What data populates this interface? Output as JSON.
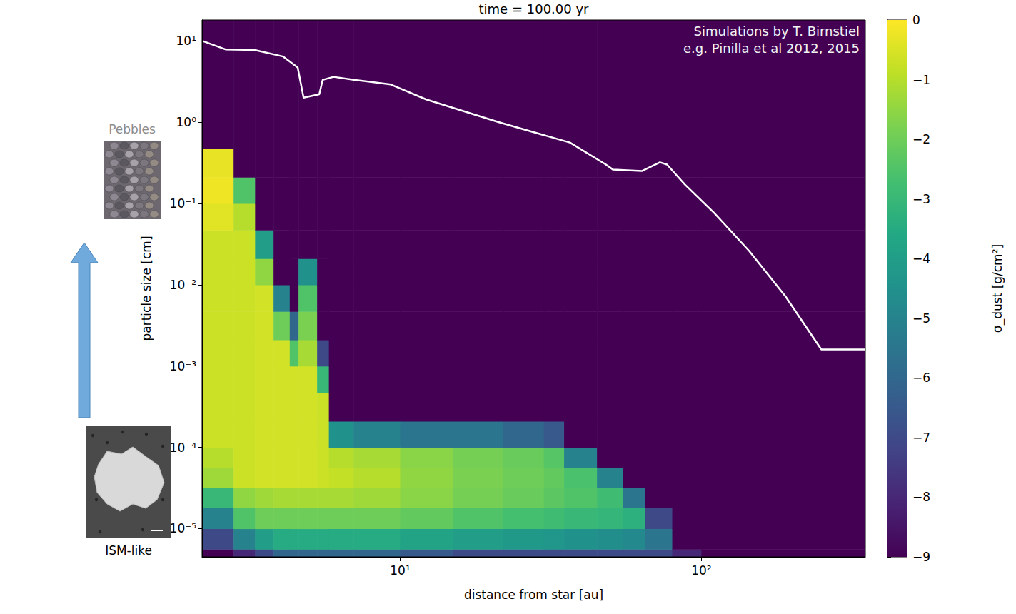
{
  "chart_data": {
    "type": "heatmap",
    "title": "time = 100.00 yr",
    "annotations": [
      "Simulations by T. Birnstiel",
      "e.g. Pinilla et al 2012, 2015"
    ],
    "x_label": "distance from star [au]",
    "y_label": "particle size [cm]",
    "log": true,
    "grid": false,
    "xlim": [
      2.2,
      350
    ],
    "xticks": [
      {
        "value": 10,
        "label": "10¹"
      },
      {
        "value": 100,
        "label": "10²"
      }
    ],
    "ylim": [
      4.5e-06,
      18
    ],
    "yticks": [
      {
        "value": 1e-05,
        "label": "10⁻⁵"
      },
      {
        "value": 0.0001,
        "label": "10⁻⁴"
      },
      {
        "value": 0.001,
        "label": "10⁻³"
      },
      {
        "value": 0.01,
        "label": "10⁻²"
      },
      {
        "value": 0.1,
        "label": "10⁻¹"
      },
      {
        "value": 1,
        "label": "10⁰"
      },
      {
        "value": 10,
        "label": "10¹"
      }
    ],
    "x_edges": [
      2.2,
      2.8,
      3.3,
      3.8,
      4.3,
      4.6,
      5.3,
      5.8,
      7,
      10,
      15,
      22,
      30,
      35,
      45,
      55,
      65,
      80,
      100,
      350
    ],
    "y_edges": [
      4.5e-06,
      5.6e-06,
      1e-05,
      1.8e-05,
      3.2e-05,
      5.6e-05,
      0.0001,
      0.00021,
      0.00047,
      0.001,
      0.0021,
      0.0047,
      0.01,
      0.021,
      0.047,
      0.1,
      0.21,
      0.47,
      18
    ],
    "cells": [
      [
        -9,
        -7,
        -5,
        -3,
        -1.3,
        -1,
        -0.7,
        -0.7,
        -0.7,
        -0.7,
        -0.7,
        -0.7,
        -0.7,
        -0.7,
        -0.4,
        -0.2,
        -0.3,
        -9
      ],
      [
        -8,
        -5,
        -2.5,
        -1.5,
        -0.7,
        -0.7,
        -0.7,
        -0.7,
        -0.7,
        -0.7,
        -0.7,
        -0.7,
        -0.7,
        -0.7,
        -1,
        -2.5,
        -9,
        -9
      ],
      [
        -7,
        -4,
        -2,
        -1.3,
        -0.6,
        -0.6,
        -0.6,
        -0.6,
        -0.6,
        -0.6,
        -0.6,
        -0.6,
        -1.5,
        -4,
        -9,
        -9,
        -9,
        -9
      ],
      [
        -6,
        -3.5,
        -2,
        -1.2,
        -0.6,
        -0.6,
        -0.6,
        -0.6,
        -0.6,
        -0.6,
        -2,
        -5,
        -9,
        -9,
        -9,
        -9,
        -9,
        -9
      ],
      [
        -6,
        -3.5,
        -2,
        -1.2,
        -0.6,
        -0.6,
        -0.6,
        -0.6,
        -0.6,
        -2.5,
        -6,
        -9,
        -9,
        -9,
        -9,
        -9,
        -9,
        -9
      ],
      [
        -6,
        -3.5,
        -2,
        -1.2,
        -0.6,
        -0.6,
        -0.6,
        -0.6,
        -0.6,
        -1.2,
        -1.8,
        -2.5,
        -4.5,
        -9,
        -9,
        -9,
        -9,
        -9
      ],
      [
        -6,
        -3.5,
        -2,
        -1.2,
        -0.7,
        -0.7,
        -0.7,
        -0.7,
        -3,
        -7,
        -9,
        -9,
        -9,
        -9,
        -9,
        -9,
        -9,
        -9
      ],
      [
        -6,
        -3.5,
        -2,
        -1.2,
        -0.8,
        -1,
        -4.5,
        -9,
        -9,
        -9,
        -9,
        -9,
        -9,
        -9,
        -9,
        -9,
        -9,
        -9
      ],
      [
        -6,
        -3.5,
        -2,
        -1.3,
        -1,
        -1.2,
        -5,
        -9,
        -9,
        -9,
        -9,
        -9,
        -9,
        -9,
        -9,
        -9,
        -9,
        -9
      ],
      [
        -6.5,
        -3.8,
        -2.2,
        -1.6,
        -1.5,
        -1.6,
        -5.5,
        -9,
        -9,
        -9,
        -9,
        -9,
        -9,
        -9,
        -9,
        -9,
        -9,
        -9
      ],
      [
        -7,
        -4,
        -2.5,
        -1.9,
        -1.8,
        -1.9,
        -5.5,
        -9,
        -9,
        -9,
        -9,
        -9,
        -9,
        -9,
        -9,
        -9,
        -9,
        -9
      ],
      [
        -7,
        -4.2,
        -2.7,
        -2.1,
        -2,
        -2.1,
        -6,
        -9,
        -9,
        -9,
        -9,
        -9,
        -9,
        -9,
        -9,
        -9,
        -9,
        -9
      ],
      [
        -7,
        -4.3,
        -2.8,
        -2.3,
        -2.2,
        -2.4,
        -6.5,
        -9,
        -9,
        -9,
        -9,
        -9,
        -9,
        -9,
        -9,
        -9,
        -9,
        -9
      ],
      [
        -7,
        -4.5,
        -3,
        -2.5,
        -2.6,
        -5,
        -9,
        -9,
        -9,
        -9,
        -9,
        -9,
        -9,
        -9,
        -9,
        -9,
        -9,
        -9
      ],
      [
        -7,
        -4.6,
        -3.1,
        -2.8,
        -5,
        -9,
        -9,
        -9,
        -9,
        -9,
        -9,
        -9,
        -9,
        -9,
        -9,
        -9,
        -9,
        -9
      ],
      [
        -7,
        -4.8,
        -3.3,
        -5.5,
        -9,
        -9,
        -9,
        -9,
        -9,
        -9,
        -9,
        -9,
        -9,
        -9,
        -9,
        -9,
        -9,
        -9
      ],
      [
        -7,
        -5.5,
        -7,
        -9,
        -9,
        -9,
        -9,
        -9,
        -9,
        -9,
        -9,
        -9,
        -9,
        -9,
        -9,
        -9,
        -9,
        -9
      ],
      [
        -8,
        -9,
        -9,
        -9,
        -9,
        -9,
        -9,
        -9,
        -9,
        -9,
        -9,
        -9,
        -9,
        -9,
        -9,
        -9,
        -9,
        -9
      ],
      [
        -9,
        -9,
        -9,
        -9,
        -9,
        -9,
        -9,
        -9,
        -9,
        -9,
        -9,
        -9,
        -9,
        -9,
        -9,
        -9,
        -9,
        -9
      ]
    ],
    "colorbar": {
      "label": "σ_dust [g/cm²]",
      "lim": [
        -9,
        0
      ],
      "ticks": [
        0,
        {
          "value": -1,
          "label": "−1"
        },
        {
          "value": -2,
          "label": "−2"
        },
        {
          "value": -3,
          "label": "−3"
        },
        {
          "value": -4,
          "label": "−4"
        },
        {
          "value": -5,
          "label": "−5"
        },
        {
          "value": -6,
          "label": "−6"
        },
        {
          "value": -7,
          "label": "−7"
        },
        {
          "value": -8,
          "label": "−8"
        },
        {
          "value": -9,
          "label": "−9"
        }
      ]
    },
    "series": [
      {
        "type": "line",
        "color": "#ffffff",
        "x": [
          2.2,
          2.64,
          3.29,
          4.09,
          4.57,
          4.78,
          5.39,
          5.53,
          6.01,
          7.08,
          9.31,
          12.2,
          21.2,
          36.6,
          48.2,
          50.9,
          63.4,
          72.8,
          76.9,
          88.2,
          110,
          144,
          190,
          250,
          350
        ],
        "values": [
          10,
          7.8,
          7.7,
          6.4,
          4.7,
          2.0,
          2.2,
          3.3,
          3.6,
          3.3,
          2.9,
          1.9,
          1.0,
          0.56,
          0.3,
          0.26,
          0.25,
          0.32,
          0.3,
          0.17,
          0.077,
          0.026,
          0.0072,
          0.0016,
          0.0016
        ]
      }
    ]
  },
  "side_panel": {
    "top_label": "Pebbles",
    "bottom_label": "ISM-like"
  }
}
